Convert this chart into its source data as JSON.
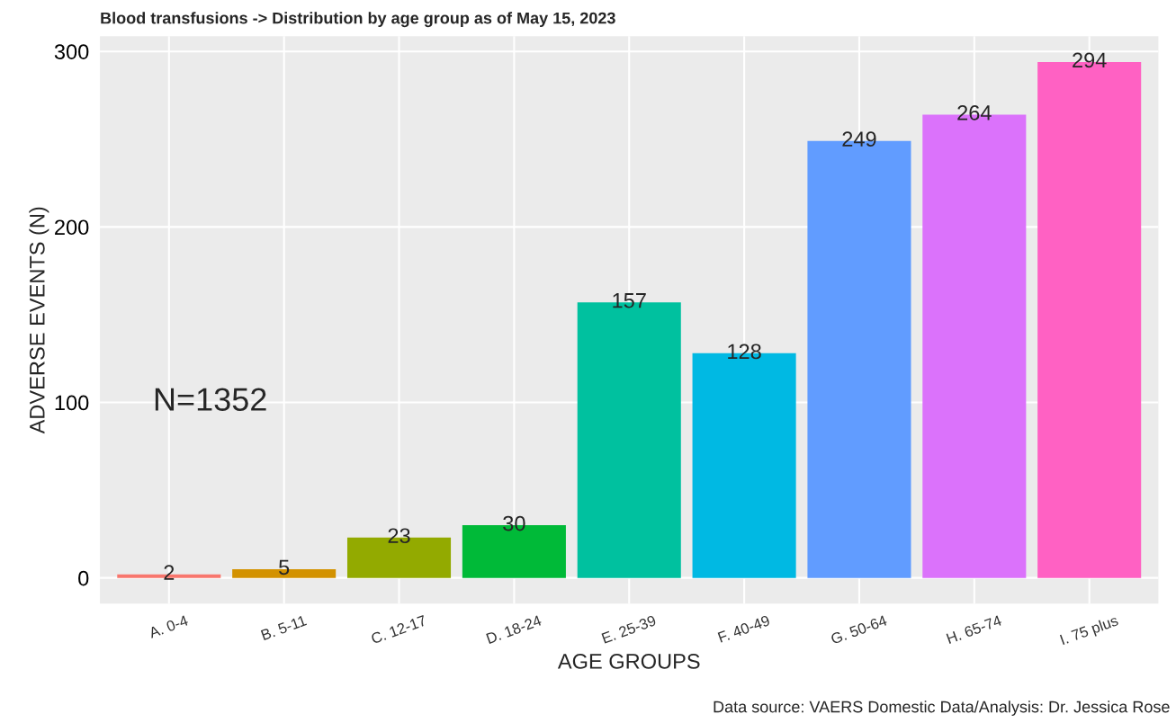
{
  "chart_data": {
    "type": "bar",
    "title": "Blood transfusions -> Distribution by age group as of May 15, 2023",
    "xlabel": "AGE GROUPS",
    "ylabel": "ADVERSE EVENTS (N)",
    "categories": [
      "A. 0-4",
      "B. 5-11",
      "C. 12-17",
      "D. 18-24",
      "E. 25-39",
      "F. 40-49",
      "G. 50-64",
      "H. 65-74",
      "I. 75 plus"
    ],
    "values": [
      2,
      5,
      23,
      30,
      157,
      128,
      249,
      264,
      294
    ],
    "colors": [
      "#f8766d",
      "#d39200",
      "#93aa00",
      "#00ba38",
      "#00c19f",
      "#00b9e3",
      "#619cff",
      "#db72fb",
      "#ff61c3"
    ],
    "ylim": [
      -14.7,
      308.7
    ],
    "yticks": [
      0,
      100,
      200,
      300
    ],
    "grid": true,
    "data_labels": true,
    "annotations": [
      "N=1352",
      "Data source: VAERS Domestic Data/Analysis: Dr. Jessica Rose"
    ]
  }
}
